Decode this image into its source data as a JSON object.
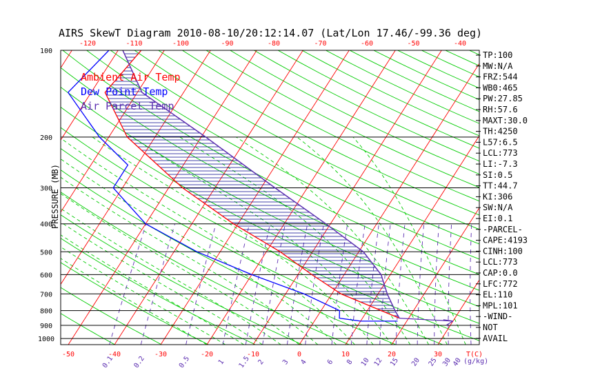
{
  "chart_data": {
    "type": "line",
    "title": "AIRS SkewT Diagram 2010-08-10/20:12:14.07 (Lat/Lon 17.46/-99.36 deg)",
    "ylabel": "PRESSURE (MB)",
    "xunit_label": "T(C)",
    "mixing_unit_label": "(g/kg)",
    "pressure_ticks": [
      100,
      200,
      300,
      400,
      500,
      600,
      700,
      800,
      900,
      1000
    ],
    "temp_ticks_bottom": [
      -50,
      -40,
      -30,
      -20,
      -10,
      0,
      10,
      20,
      30
    ],
    "temp_ticks_top": [
      -120,
      -110,
      -100,
      -90,
      -80,
      -70,
      -60,
      -50,
      -40
    ],
    "mixing_ratio_labels": [
      "0.1",
      "0.2",
      "0.5",
      "1",
      "1.5",
      "2",
      "3",
      "4",
      "6",
      "8",
      "10",
      "12",
      "15",
      "20",
      "25",
      "30",
      "40"
    ],
    "mixing_ratio_values": [
      0.1,
      0.2,
      0.5,
      1,
      1.5,
      2,
      3,
      4,
      6,
      8,
      10,
      12,
      15,
      20,
      25,
      30,
      40
    ],
    "legend": [
      {
        "name": "Ambient Air Temp",
        "color": "#ff0000"
      },
      {
        "name": "Dew Point Temp",
        "color": "#0000ff"
      },
      {
        "name": "Air Parcel Temp",
        "color": "#5b2db0"
      }
    ],
    "series": [
      {
        "name": "Ambient Air Temp",
        "color": "#ff0000",
        "points": [
          [
            100,
            -75
          ],
          [
            140,
            -77
          ],
          [
            200,
            -66
          ],
          [
            300,
            -47
          ],
          [
            400,
            -31
          ],
          [
            500,
            -17
          ],
          [
            600,
            -7
          ],
          [
            700,
            2
          ],
          [
            800,
            13
          ],
          [
            850,
            18
          ]
        ]
      },
      {
        "name": "Dew Point Temp",
        "color": "#0000ff",
        "points": [
          [
            100,
            -82
          ],
          [
            140,
            -85
          ],
          [
            200,
            -72
          ],
          [
            250,
            -62
          ],
          [
            300,
            -62
          ],
          [
            400,
            -50
          ],
          [
            500,
            -35
          ],
          [
            600,
            -20
          ],
          [
            700,
            -6
          ],
          [
            800,
            4
          ],
          [
            850,
            5
          ],
          [
            870,
            10
          ],
          [
            870,
            18
          ]
        ]
      },
      {
        "name": "Air Parcel Temp",
        "color": "#5b2db0",
        "points": [
          [
            100,
            -79
          ],
          [
            140,
            -69
          ],
          [
            200,
            -49
          ],
          [
            300,
            -27
          ],
          [
            400,
            -11
          ],
          [
            500,
            1
          ],
          [
            600,
            8
          ],
          [
            700,
            12
          ],
          [
            800,
            16
          ],
          [
            850,
            18
          ]
        ]
      }
    ],
    "cape_shading": {
      "from_p": 100,
      "to_p": 850,
      "color": "#00008b"
    },
    "surface_arrow": {
      "from": [
        870,
        30
      ],
      "to": [
        850,
        18
      ],
      "color": "#5b2db0"
    },
    "indices": [
      "TP:100",
      "MW:N/A",
      "FRZ:544",
      "WB0:465",
      "PW:27.85",
      "RH:57.6",
      "MAXT:30.0",
      "TH:4250",
      "L57:6.5",
      "LCL:773",
      "LI:-7.3",
      "SI:0.5",
      "TT:44.7",
      "KI:306",
      "SW:N/A",
      "EI:0.1",
      "-PARCEL-",
      "CAPE:4193",
      "CINH:100",
      "LCL:773",
      "CAP:0.0",
      "LFC:772",
      "EL:110",
      "MPL:101",
      "-WIND-",
      "NOT",
      "AVAIL"
    ],
    "colors": {
      "isotherm": "#ff0000",
      "dry_adiabat": "#00cc00",
      "moist_adiabat": "#00cc00",
      "mixing_ratio": "#5b2db0",
      "isobar": "#000000"
    }
  }
}
